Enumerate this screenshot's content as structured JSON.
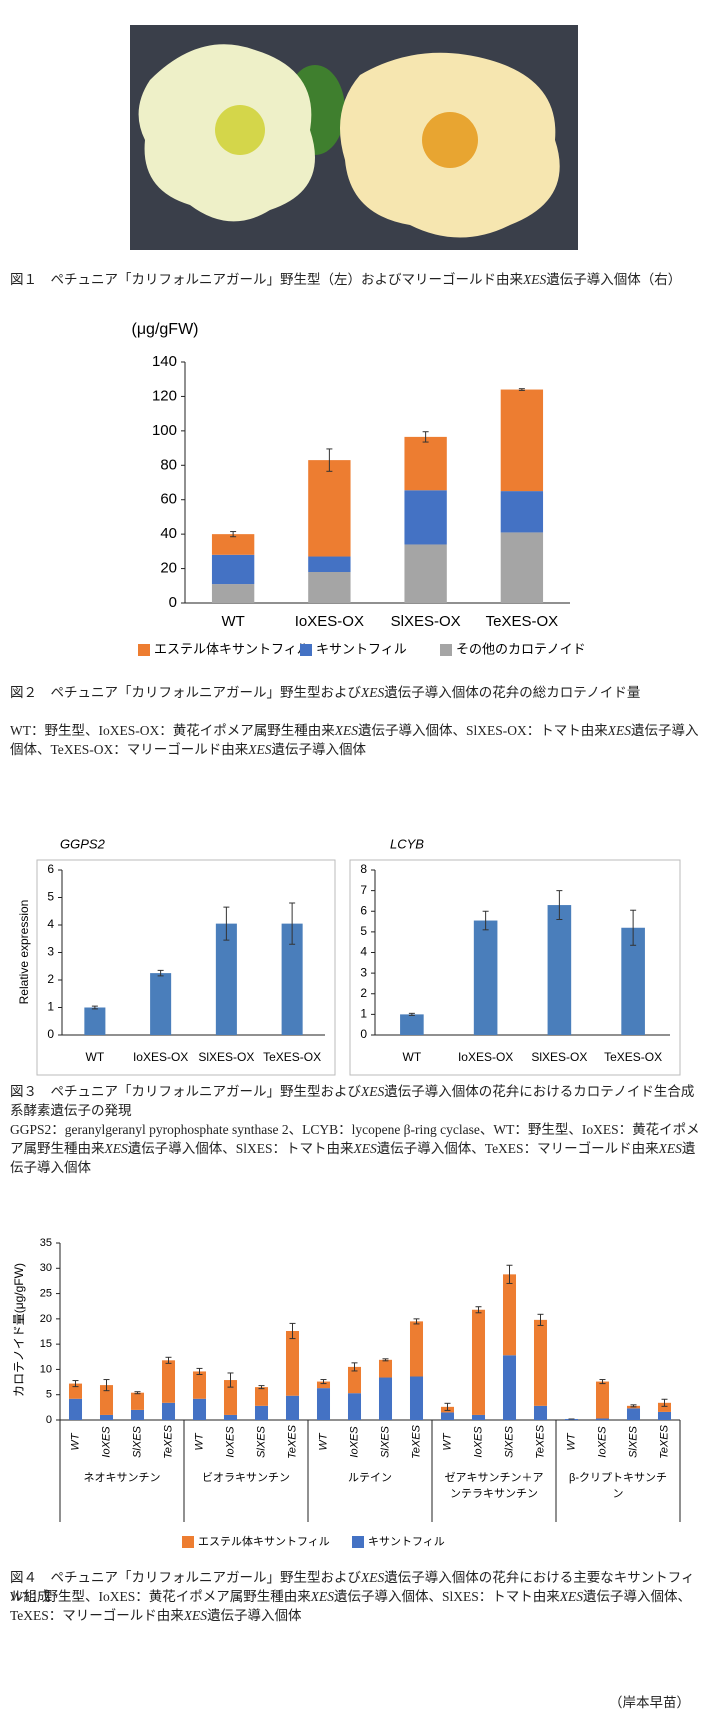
{
  "chart_data": [
    {
      "type": "bar",
      "stacked": true,
      "ylabel": "(μg/gFW)",
      "categories": [
        "WT",
        "IoXES-OX",
        "SlXES-OX",
        "TeXES-OX"
      ],
      "series": [
        {
          "name": "その他のカロテノイド",
          "color": "#a5a5a5",
          "values": [
            11,
            18,
            34,
            41
          ]
        },
        {
          "name": "キサントフィル",
          "color": "#4472c4",
          "values": [
            17,
            9,
            31.5,
            24
          ]
        },
        {
          "name": "エステル体キサントフィル",
          "color": "#ed7d31",
          "values": [
            12,
            56,
            31,
            59
          ]
        }
      ],
      "errors": [
        1.5,
        6.5,
        3,
        0.5
      ],
      "ylim": [
        0,
        140
      ],
      "yticks": [
        0,
        20,
        40,
        60,
        80,
        100,
        120,
        140
      ],
      "legend": "bottom"
    },
    {
      "type": "bar",
      "title": "GGPS2",
      "ylabel": "Relative expression",
      "categories": [
        "WT",
        "IoXES-OX",
        "SlXES-OX",
        "TeXES-OX"
      ],
      "values": [
        1.0,
        2.25,
        4.05,
        4.05
      ],
      "errors": [
        0.05,
        0.1,
        0.6,
        0.75
      ],
      "color": "#4a7ebb",
      "ylim": [
        0,
        6
      ],
      "yticks": [
        0,
        1,
        2,
        3,
        4,
        5,
        6
      ]
    },
    {
      "type": "bar",
      "title": "LCYB",
      "categories": [
        "WT",
        "IoXES-OX",
        "SlXES-OX",
        "TeXES-OX"
      ],
      "values": [
        1.0,
        5.55,
        6.3,
        5.2
      ],
      "errors": [
        0.05,
        0.45,
        0.7,
        0.85
      ],
      "color": "#4a7ebb",
      "ylim": [
        0,
        8
      ],
      "yticks": [
        0,
        1,
        2,
        3,
        4,
        5,
        6,
        7,
        8
      ]
    },
    {
      "type": "bar",
      "stacked": true,
      "ylabel": "カロテノイド量(μg/gFW)",
      "groups": [
        {
          "name": "ネオキサンチン",
          "categories": [
            "WT",
            "IoXES",
            "SlXES",
            "TeXES"
          ]
        },
        {
          "name": "ビオラキサンチン",
          "categories": [
            "WT",
            "IoXES",
            "SlXES",
            "TeXES"
          ]
        },
        {
          "name": "ルテイン",
          "categories": [
            "WT",
            "IoXES",
            "SlXES",
            "TeXES"
          ]
        },
        {
          "name": "ゼアキサンチン＋アンテラキサンチン",
          "categories": [
            "WT",
            "IoXES",
            "SlXES",
            "TeXES"
          ]
        },
        {
          "name": "β-クリプトキサンチン",
          "categories": [
            "WT",
            "IoXES",
            "SlXES",
            "TeXES"
          ]
        }
      ],
      "series": [
        {
          "name": "キサントフィル",
          "color": "#4472c4",
          "values": [
            4.2,
            1.0,
            2.0,
            3.4,
            4.2,
            1.0,
            2.8,
            4.8,
            6.3,
            5.3,
            8.4,
            8.6,
            1.5,
            1.0,
            12.8,
            2.8,
            0.2,
            0.3,
            2.3,
            1.6
          ]
        },
        {
          "name": "エステル体キサントフィル",
          "color": "#ed7d31",
          "values": [
            3.0,
            5.9,
            3.4,
            8.4,
            5.4,
            6.9,
            3.7,
            12.8,
            1.3,
            5.2,
            3.5,
            10.9,
            1.1,
            20.8,
            16.0,
            17.0,
            0,
            7.3,
            0.5,
            1.8
          ]
        }
      ],
      "errors": [
        0.6,
        1.1,
        0.2,
        0.6,
        0.6,
        1.4,
        0.3,
        1.5,
        0.4,
        0.8,
        0.2,
        0.5,
        0.7,
        0.6,
        1.8,
        1.1,
        0,
        0.4,
        0.2,
        0.7
      ],
      "ylim": [
        0,
        35
      ],
      "yticks": [
        0,
        5,
        10,
        15,
        20,
        25,
        30,
        35
      ],
      "legend": "bottom"
    }
  ],
  "captions": {
    "fig1": [
      "図１　ペチュニア「カリフォルニアガール」野生型（左）およびマリーゴールド由来",
      "XES",
      "遺伝子導入個体（右）"
    ],
    "fig2": [
      "図２　ペチュニア「カリフォルニアガール」野生型および",
      "XES",
      "遺伝子導入個体の花弁の総カロテノイド量"
    ],
    "fig2note": [
      "WT：野生型、IoXES-OX：黄花イポメア属野生種由来",
      "XES",
      "遺伝子導入個体、SlXES-OX：トマト由来",
      "XES",
      "遺伝子導入個体、TeXES-OX：マリーゴールド由来",
      "XES",
      "遺伝子導入個体"
    ],
    "fig3": [
      "図３　ペチュニア「カリフォルニアガール」野生型および",
      "XES",
      "遺伝子導入個体の花弁におけるカロテノイド生合成系酵素遺伝子の発現"
    ],
    "fig3note": [
      "GGPS2：geranylgeranyl pyrophosphate synthase 2、LCYB：lycopene β-ring cyclase、WT：野生型、IoXES：黄花イポメア属野生種由来",
      "XES",
      "遺伝子導入個体、SlXES：トマト由来",
      "XES",
      "遺伝子導入個体、TeXES：マリーゴールド由来",
      "XES",
      "遺伝子導入個体"
    ],
    "fig4": [
      "図４　ペチュニア「カリフォルニアガール」野生型および",
      "XES",
      "遺伝子導入個体の花弁における主要なキサントフィル組成"
    ],
    "fig4note": [
      "WT：野生型、IoXES：黄花イポメア属野生種由来",
      "XES",
      "遺伝子導入個体、SlXES：トマト由来",
      "XES",
      "遺伝子導入個体、TeXES：マリーゴールド由来",
      "XES",
      "遺伝子導入個体"
    ]
  },
  "author": "（岸本早苗）"
}
